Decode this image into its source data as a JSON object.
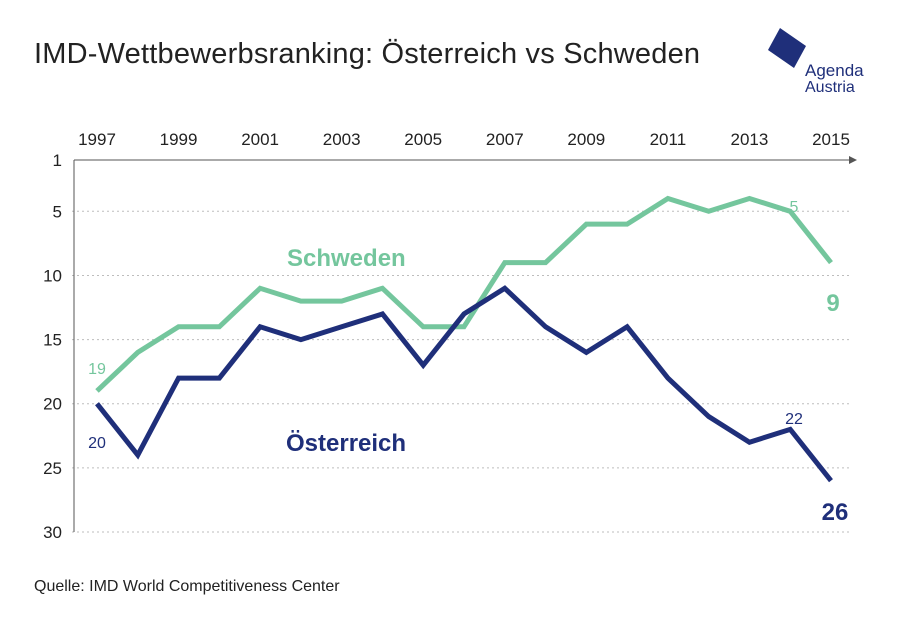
{
  "title": "IMD-Wettbewerbsranking: Österreich vs Schweden",
  "source": "Quelle: IMD World Competitiveness Center",
  "logo": {
    "line1": "Agenda",
    "line2": "Austria",
    "color": "#1f2f7a"
  },
  "chart_data": {
    "type": "line",
    "x": [
      1997,
      1998,
      1999,
      2000,
      2001,
      2002,
      2003,
      2004,
      2005,
      2006,
      2007,
      2008,
      2009,
      2010,
      2011,
      2012,
      2013,
      2014,
      2015
    ],
    "xticks": [
      "1997",
      "1999",
      "2001",
      "2003",
      "2005",
      "2007",
      "2009",
      "2011",
      "2013",
      "2015"
    ],
    "yticks": [
      "1",
      "5",
      "10",
      "15",
      "20",
      "25",
      "30"
    ],
    "ylim": [
      1,
      30
    ],
    "y_inverted": true,
    "xaxis_position": "top",
    "grid": "dotted horizontal",
    "series": [
      {
        "name": "Schweden",
        "color": "#74c69d",
        "values": [
          19,
          16,
          14,
          14,
          11,
          12,
          12,
          11,
          14,
          14,
          9,
          9,
          6,
          6,
          4,
          5,
          4,
          5,
          9
        ],
        "labels": {
          "start": "19",
          "2014": "5",
          "end": "9"
        }
      },
      {
        "name": "Österreich",
        "color": "#1f2f7a",
        "values": [
          20,
          24,
          18,
          18,
          14,
          15,
          14,
          13,
          17,
          13,
          11,
          14,
          16,
          14,
          18,
          21,
          23,
          22,
          26
        ],
        "labels": {
          "start": "20",
          "2014": "22",
          "end": "26"
        }
      }
    ]
  }
}
